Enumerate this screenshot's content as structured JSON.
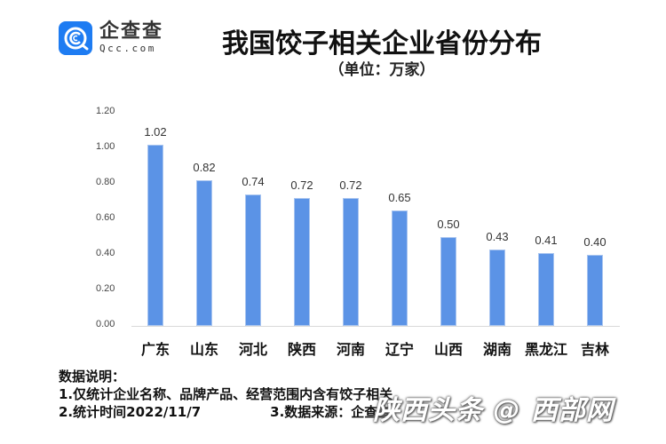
{
  "logo": {
    "name_cn": "企查查",
    "domain": "Qcc.com",
    "icon": "qcc-logo-icon",
    "color": "#1e7cf2"
  },
  "header": {
    "title": "我国饺子相关企业省份分布",
    "subtitle": "（单位：万家）"
  },
  "chart_data": {
    "type": "bar",
    "title": "我国饺子相关企业省份分布",
    "subtitle": "（单位：万家）",
    "xlabel": "",
    "ylabel": "万家",
    "categories": [
      "广东",
      "山东",
      "河北",
      "陕西",
      "河南",
      "辽宁",
      "山西",
      "湖南",
      "黑龙江",
      "吉林"
    ],
    "values": [
      1.02,
      0.82,
      0.74,
      0.72,
      0.72,
      0.65,
      0.5,
      0.43,
      0.41,
      0.4
    ],
    "value_labels": [
      "1.02",
      "0.82",
      "0.74",
      "0.72",
      "0.72",
      "0.65",
      "0.50",
      "0.43",
      "0.41",
      "0.40"
    ],
    "ylim": [
      0,
      1.2
    ],
    "yticks": [
      "1.20",
      "1.00",
      "0.80",
      "0.60",
      "0.40",
      "0.20",
      "0.00"
    ],
    "grid": false,
    "legend": "none",
    "bar_color": "#5b93e6"
  },
  "notes": {
    "heading": "数据说明：",
    "line1": "1.仅统计企业名称、品牌产品、经营范围内含有饺子相关",
    "line2a": "2.统计时间2022/11/7",
    "line2b": "3.数据来源：企查查"
  },
  "watermark": "陕西头条 @ 西部网"
}
